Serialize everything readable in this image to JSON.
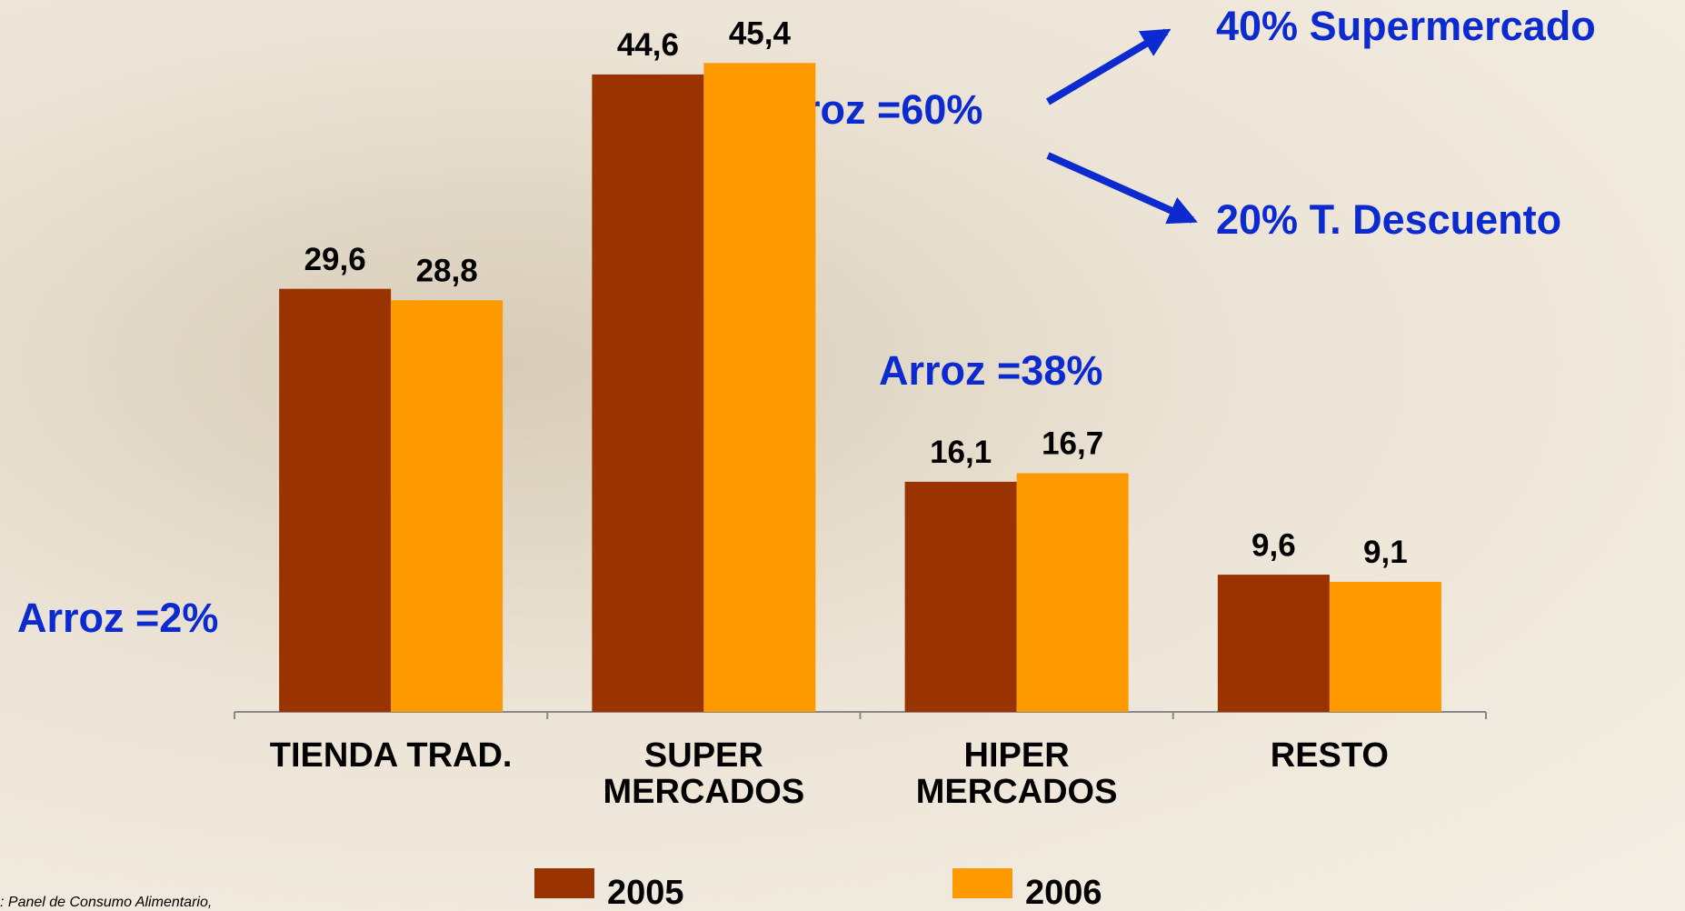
{
  "chart_data": {
    "type": "bar",
    "categories": [
      "TIENDA TRAD.",
      "SUPER\nMERCADOS",
      "HIPER\nMERCADOS",
      "RESTO"
    ],
    "series": [
      {
        "name": "2005",
        "color": "#993300",
        "values": [
          29.6,
          44.6,
          16.1,
          9.6
        ],
        "value_labels": [
          "29,6",
          "44,6",
          "16,1",
          "9,6"
        ]
      },
      {
        "name": "2006",
        "color": "#ff9900",
        "values": [
          28.8,
          45.4,
          16.7,
          9.1
        ],
        "value_labels": [
          "28,8",
          "45,4",
          "16,7",
          "9,1"
        ]
      }
    ],
    "ylim": [
      0,
      50
    ],
    "annotations": [
      "40% Supermercado",
      "Arroz =60%",
      "20% T. Descuento",
      "Arroz =38%",
      "Arroz =2%"
    ],
    "source": ": Panel de Consumo Alimentario,"
  }
}
